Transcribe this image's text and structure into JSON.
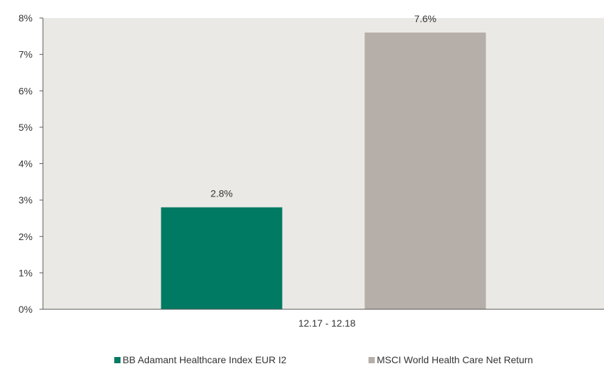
{
  "chart_data": {
    "type": "bar",
    "title": "",
    "xlabel": "",
    "ylabel": "",
    "categories": [
      "12.17 - 12.18"
    ],
    "y_ticks": [
      "0%",
      "1%",
      "2%",
      "3%",
      "4%",
      "5%",
      "6%",
      "7%",
      "8%"
    ],
    "ylim": [
      0,
      8
    ],
    "grid": false,
    "legend_position": "bottom",
    "plot_background": "#ebe9e5",
    "series": [
      {
        "name": "BB Adamant Healthcare Index EUR I2",
        "values": [
          2.8
        ],
        "label": "2.8%",
        "color": "#007a63"
      },
      {
        "name": "MSCI World Health Care Net Return",
        "values": [
          7.6
        ],
        "label": "7.6%",
        "color": "#b5aea9"
      }
    ]
  }
}
